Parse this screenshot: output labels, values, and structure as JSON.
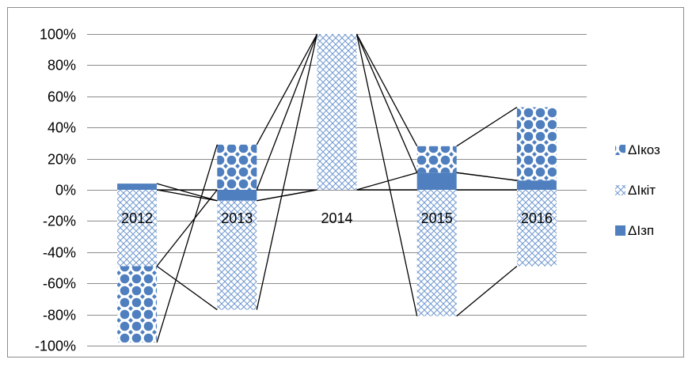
{
  "chart_data": {
    "type": "bar",
    "stacked": true,
    "categories": [
      "2012",
      "2013",
      "2014",
      "2015",
      "2016"
    ],
    "series": [
      {
        "name": "ΔIзп",
        "values": [
          4,
          -7,
          0,
          11,
          6
        ],
        "pattern": "solid",
        "color": "#4f7fbf"
      },
      {
        "name": "ΔIкіт",
        "values": [
          -49,
          -70,
          100,
          -81,
          -49
        ],
        "pattern": "crosshatch",
        "color": "#4f7fbf"
      },
      {
        "name": "ΔIкоз",
        "values": [
          -49,
          29,
          0,
          17,
          47
        ],
        "pattern": "dots",
        "color": "#4f7fbf"
      }
    ],
    "ylim": [
      -100,
      100
    ],
    "yticks": [
      -100,
      -80,
      -60,
      -40,
      -20,
      0,
      20,
      40,
      60,
      80,
      100
    ],
    "ytick_labels": [
      "-100%",
      "-80%",
      "-60%",
      "-40%",
      "-20%",
      "0%",
      "20%",
      "40%",
      "60%",
      "80%",
      "100%"
    ],
    "grid": true,
    "legend_position": "right",
    "series_lines": true,
    "title": "",
    "xlabel": "",
    "ylabel": ""
  }
}
